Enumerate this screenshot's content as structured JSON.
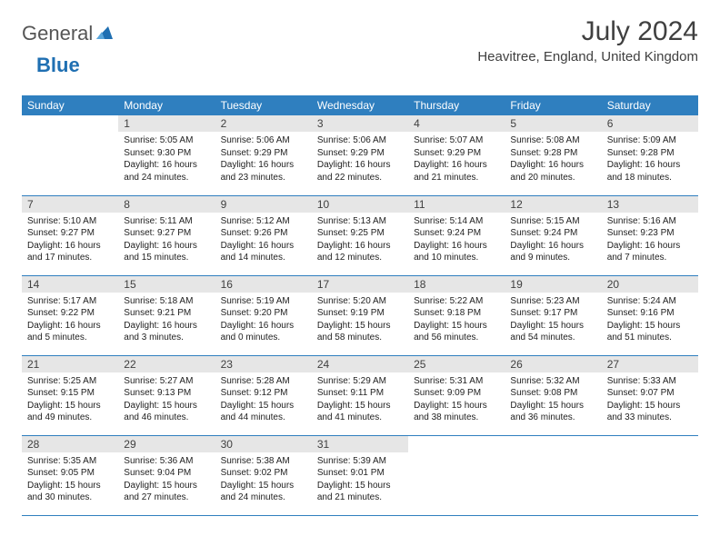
{
  "logo": {
    "brand_gray": "General",
    "brand_blue": "Blue"
  },
  "title": "July 2024",
  "location": "Heavitree, England, United Kingdom",
  "colors": {
    "header_bg": "#2f7fbf",
    "header_fg": "#ffffff",
    "daynum_bg": "#e6e6e6",
    "row_border": "#2f7fbf",
    "text": "#222222"
  },
  "weekdays": [
    "Sunday",
    "Monday",
    "Tuesday",
    "Wednesday",
    "Thursday",
    "Friday",
    "Saturday"
  ],
  "weeks": [
    [
      null,
      {
        "n": "1",
        "sr": "5:05 AM",
        "ss": "9:30 PM",
        "dl": "16 hours and 24 minutes."
      },
      {
        "n": "2",
        "sr": "5:06 AM",
        "ss": "9:29 PM",
        "dl": "16 hours and 23 minutes."
      },
      {
        "n": "3",
        "sr": "5:06 AM",
        "ss": "9:29 PM",
        "dl": "16 hours and 22 minutes."
      },
      {
        "n": "4",
        "sr": "5:07 AM",
        "ss": "9:29 PM",
        "dl": "16 hours and 21 minutes."
      },
      {
        "n": "5",
        "sr": "5:08 AM",
        "ss": "9:28 PM",
        "dl": "16 hours and 20 minutes."
      },
      {
        "n": "6",
        "sr": "5:09 AM",
        "ss": "9:28 PM",
        "dl": "16 hours and 18 minutes."
      }
    ],
    [
      {
        "n": "7",
        "sr": "5:10 AM",
        "ss": "9:27 PM",
        "dl": "16 hours and 17 minutes."
      },
      {
        "n": "8",
        "sr": "5:11 AM",
        "ss": "9:27 PM",
        "dl": "16 hours and 15 minutes."
      },
      {
        "n": "9",
        "sr": "5:12 AM",
        "ss": "9:26 PM",
        "dl": "16 hours and 14 minutes."
      },
      {
        "n": "10",
        "sr": "5:13 AM",
        "ss": "9:25 PM",
        "dl": "16 hours and 12 minutes."
      },
      {
        "n": "11",
        "sr": "5:14 AM",
        "ss": "9:24 PM",
        "dl": "16 hours and 10 minutes."
      },
      {
        "n": "12",
        "sr": "5:15 AM",
        "ss": "9:24 PM",
        "dl": "16 hours and 9 minutes."
      },
      {
        "n": "13",
        "sr": "5:16 AM",
        "ss": "9:23 PM",
        "dl": "16 hours and 7 minutes."
      }
    ],
    [
      {
        "n": "14",
        "sr": "5:17 AM",
        "ss": "9:22 PM",
        "dl": "16 hours and 5 minutes."
      },
      {
        "n": "15",
        "sr": "5:18 AM",
        "ss": "9:21 PM",
        "dl": "16 hours and 3 minutes."
      },
      {
        "n": "16",
        "sr": "5:19 AM",
        "ss": "9:20 PM",
        "dl": "16 hours and 0 minutes."
      },
      {
        "n": "17",
        "sr": "5:20 AM",
        "ss": "9:19 PM",
        "dl": "15 hours and 58 minutes."
      },
      {
        "n": "18",
        "sr": "5:22 AM",
        "ss": "9:18 PM",
        "dl": "15 hours and 56 minutes."
      },
      {
        "n": "19",
        "sr": "5:23 AM",
        "ss": "9:17 PM",
        "dl": "15 hours and 54 minutes."
      },
      {
        "n": "20",
        "sr": "5:24 AM",
        "ss": "9:16 PM",
        "dl": "15 hours and 51 minutes."
      }
    ],
    [
      {
        "n": "21",
        "sr": "5:25 AM",
        "ss": "9:15 PM",
        "dl": "15 hours and 49 minutes."
      },
      {
        "n": "22",
        "sr": "5:27 AM",
        "ss": "9:13 PM",
        "dl": "15 hours and 46 minutes."
      },
      {
        "n": "23",
        "sr": "5:28 AM",
        "ss": "9:12 PM",
        "dl": "15 hours and 44 minutes."
      },
      {
        "n": "24",
        "sr": "5:29 AM",
        "ss": "9:11 PM",
        "dl": "15 hours and 41 minutes."
      },
      {
        "n": "25",
        "sr": "5:31 AM",
        "ss": "9:09 PM",
        "dl": "15 hours and 38 minutes."
      },
      {
        "n": "26",
        "sr": "5:32 AM",
        "ss": "9:08 PM",
        "dl": "15 hours and 36 minutes."
      },
      {
        "n": "27",
        "sr": "5:33 AM",
        "ss": "9:07 PM",
        "dl": "15 hours and 33 minutes."
      }
    ],
    [
      {
        "n": "28",
        "sr": "5:35 AM",
        "ss": "9:05 PM",
        "dl": "15 hours and 30 minutes."
      },
      {
        "n": "29",
        "sr": "5:36 AM",
        "ss": "9:04 PM",
        "dl": "15 hours and 27 minutes."
      },
      {
        "n": "30",
        "sr": "5:38 AM",
        "ss": "9:02 PM",
        "dl": "15 hours and 24 minutes."
      },
      {
        "n": "31",
        "sr": "5:39 AM",
        "ss": "9:01 PM",
        "dl": "15 hours and 21 minutes."
      },
      null,
      null,
      null
    ]
  ],
  "labels": {
    "sunrise": "Sunrise:",
    "sunset": "Sunset:",
    "daylight": "Daylight:"
  }
}
